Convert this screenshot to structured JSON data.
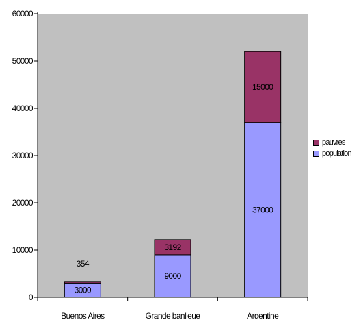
{
  "chart_data": {
    "type": "bar",
    "stacked": true,
    "categories": [
      "Buenos Aires",
      "Grande banlieue",
      "Argentine"
    ],
    "series": [
      {
        "name": "population",
        "values": [
          3000,
          9000,
          37000
        ],
        "color": "#9999ff"
      },
      {
        "name": "pauvres",
        "values": [
          354,
          3192,
          15000
        ],
        "color": "#993366"
      }
    ],
    "data_labels": {
      "population": [
        "3000",
        "9000",
        "37000"
      ],
      "pauvres": [
        "354",
        "3192",
        "15000"
      ]
    },
    "y_ticks": [
      "0",
      "10000",
      "20000",
      "30000",
      "40000",
      "50000",
      "60000"
    ],
    "ylim": [
      0,
      60000
    ],
    "title": "",
    "xlabel": "",
    "ylabel": "",
    "plot_background": "#c0c0c0",
    "grid": false,
    "legend_position": "right"
  }
}
